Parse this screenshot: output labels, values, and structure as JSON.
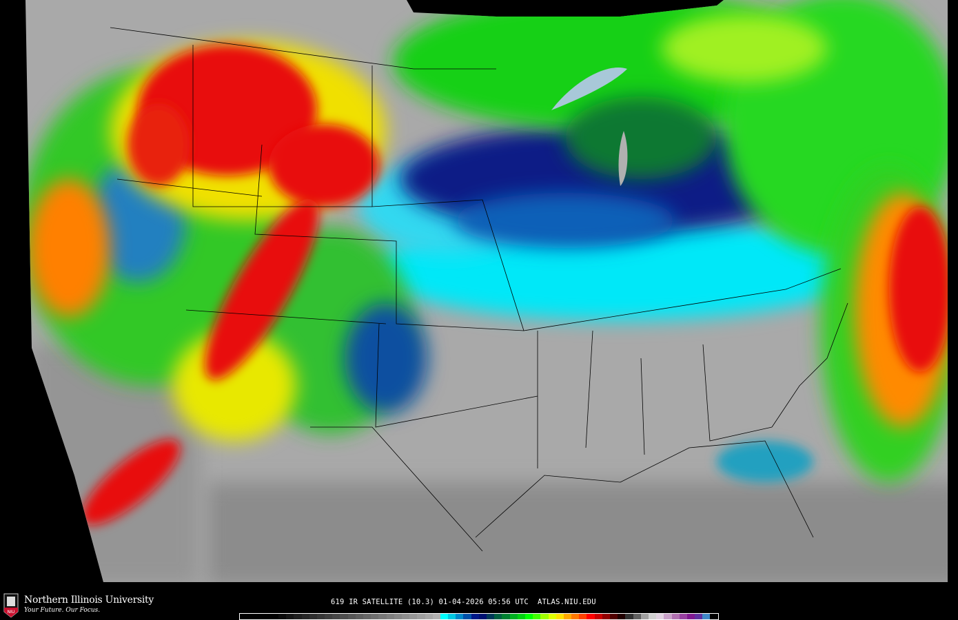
{
  "map": {
    "product": "IR satellite",
    "region": "Continental United States",
    "palette_colors": {
      "land_clear": "#a9a9a9",
      "cold_top_cyan": "#00e8f8",
      "dark_blue": "#0a1f86",
      "green": "#18d018",
      "yellow": "#f0f000",
      "orange": "#ff9000",
      "red": "#e81010",
      "dark_red": "#8a0000"
    }
  },
  "footer": {
    "university": "Northern Illinois University",
    "tagline": "Your Future. Our Focus.",
    "logo_text": "NIU",
    "caption": "619 IR SATELLITE (10.3) 01-04-2026 05:56 UTC  ATLAS.NIU.EDU"
  },
  "colorbar": {
    "colors": [
      "#000000",
      "#000000",
      "#000000",
      "#000000",
      "#000000",
      "#0a0a0a",
      "#141414",
      "#1e1e1e",
      "#262626",
      "#2e2e2e",
      "#363636",
      "#3e3e3e",
      "#464646",
      "#4e4e4e",
      "#565656",
      "#5e5e5e",
      "#666666",
      "#6e6e6e",
      "#767676",
      "#7e7e7e",
      "#868686",
      "#8e8e8e",
      "#969696",
      "#9e9e9e",
      "#a6a6a6",
      "#b0b0b0",
      "#00ffff",
      "#00c8e0",
      "#0088c8",
      "#0050a8",
      "#001888",
      "#001070",
      "#003858",
      "#006040",
      "#008030",
      "#00b020",
      "#00d010",
      "#00ff00",
      "#40ff00",
      "#a0ff00",
      "#e0ff00",
      "#ffe000",
      "#ffa800",
      "#ff7800",
      "#ff4000",
      "#ff0000",
      "#c80000",
      "#900000",
      "#500000",
      "#200000",
      "#303030",
      "#606060",
      "#a0a0a0",
      "#d0d0d0",
      "#e0d0e0",
      "#c8a0c8",
      "#b070b0",
      "#9840a0",
      "#801890",
      "#6030a0",
      "#4088c8",
      "#000000"
    ]
  }
}
